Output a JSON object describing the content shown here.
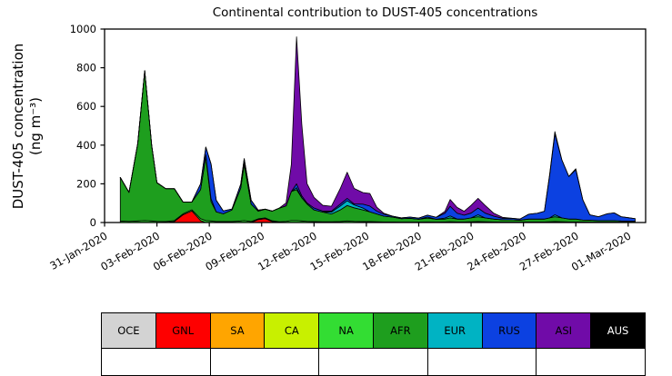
{
  "chart_data": {
    "type": "area",
    "stacked": true,
    "title": "Continental contribution to DUST-405 concentrations",
    "ylabel_line1": "DUST-405 concentration",
    "ylabel_line2": "(ng m⁻³)",
    "ylim": [
      0,
      1000
    ],
    "yticks": [
      0,
      200,
      400,
      600,
      800,
      1000
    ],
    "xlim_days": [
      0,
      31
    ],
    "xticks_days": [
      0,
      3,
      6,
      9,
      12,
      15,
      18,
      21,
      24,
      27,
      30
    ],
    "xtick_labels": [
      "31-Jan-2020",
      "03-Feb-2020",
      "06-Feb-2020",
      "09-Feb-2020",
      "12-Feb-2020",
      "15-Feb-2020",
      "18-Feb-2020",
      "21-Feb-2020",
      "24-Feb-2020",
      "27-Feb-2020",
      "01-Mar-2020"
    ],
    "grid": false,
    "legend_position": "bottom",
    "x_days": [
      0.9,
      1.4,
      1.9,
      2.3,
      2.7,
      3.0,
      3.5,
      4.0,
      4.5,
      5.0,
      5.5,
      5.8,
      6.1,
      6.4,
      6.8,
      7.3,
      7.8,
      8.0,
      8.4,
      8.8,
      9.2,
      9.6,
      10.0,
      10.4,
      10.7,
      11.0,
      11.3,
      11.6,
      12.0,
      12.5,
      13.0,
      13.5,
      13.9,
      14.3,
      14.8,
      15.2,
      15.6,
      16.0,
      16.5,
      17.0,
      17.5,
      18.0,
      18.5,
      19.0,
      19.5,
      19.8,
      20.2,
      20.6,
      21.0,
      21.4,
      21.8,
      22.3,
      22.8,
      23.3,
      23.8,
      24.3,
      24.8,
      25.2,
      25.5,
      25.8,
      26.2,
      26.6,
      27.0,
      27.4,
      27.8,
      28.3,
      28.8,
      29.2,
      29.6,
      30.0,
      30.4
    ],
    "series": [
      {
        "name": "OCE",
        "color": "#d3d3d3",
        "values": []
      },
      {
        "name": "GNL",
        "color": "#fe0000",
        "values": [
          0,
          0,
          0,
          0,
          0,
          0,
          0,
          5,
          40,
          60,
          10,
          0,
          0,
          0,
          0,
          0,
          0,
          0,
          0,
          15,
          20,
          5,
          0,
          0,
          0,
          0,
          0,
          0,
          0,
          0,
          0,
          0,
          0,
          0,
          0,
          0,
          0,
          0,
          0,
          0,
          0,
          0,
          0,
          0,
          0,
          0,
          0,
          0,
          0,
          0,
          0,
          0,
          0,
          0,
          0,
          0,
          0,
          0,
          0,
          0,
          0,
          0,
          0,
          0,
          0,
          0,
          0,
          0,
          0,
          0,
          0
        ]
      },
      {
        "name": "SA",
        "color": "#ffa500",
        "values": []
      },
      {
        "name": "CA",
        "color": "#c8f000",
        "values": []
      },
      {
        "name": "NA",
        "color": "#33dd33",
        "values": [
          8,
          6,
          8,
          10,
          8,
          6,
          5,
          5,
          5,
          6,
          10,
          10,
          8,
          5,
          5,
          5,
          8,
          10,
          5,
          4,
          4,
          4,
          4,
          6,
          10,
          10,
          8,
          6,
          5,
          4,
          4,
          5,
          8,
          6,
          5,
          5,
          4,
          3,
          3,
          2,
          2,
          2,
          3,
          2,
          3,
          4,
          3,
          3,
          4,
          5,
          4,
          3,
          2,
          2,
          2,
          3,
          3,
          3,
          4,
          5,
          4,
          3,
          3,
          3,
          2,
          2,
          2,
          2,
          2,
          2,
          2
        ]
      },
      {
        "name": "AFR",
        "color": "#1e9e1e",
        "values": [
          225,
          150,
          400,
          775,
          390,
          200,
          170,
          165,
          60,
          40,
          150,
          330,
          100,
          50,
          40,
          60,
          170,
          290,
          90,
          40,
          45,
          50,
          70,
          80,
          150,
          160,
          120,
          90,
          60,
          50,
          40,
          60,
          80,
          70,
          60,
          50,
          40,
          30,
          25,
          18,
          20,
          15,
          20,
          15,
          15,
          20,
          15,
          15,
          20,
          25,
          20,
          15,
          12,
          12,
          10,
          15,
          15,
          15,
          20,
          25,
          20,
          15,
          15,
          10,
          10,
          8,
          8,
          8,
          6,
          5,
          5
        ]
      },
      {
        "name": "EUR",
        "color": "#00b3c3",
        "values": [
          0,
          0,
          0,
          0,
          0,
          0,
          0,
          0,
          0,
          0,
          0,
          10,
          15,
          0,
          0,
          0,
          0,
          10,
          0,
          0,
          0,
          0,
          0,
          0,
          0,
          10,
          0,
          0,
          0,
          0,
          10,
          20,
          25,
          15,
          10,
          0,
          0,
          0,
          0,
          0,
          0,
          0,
          5,
          0,
          5,
          10,
          0,
          0,
          0,
          10,
          0,
          0,
          0,
          0,
          0,
          0,
          0,
          0,
          0,
          10,
          0,
          0,
          0,
          0,
          0,
          0,
          0,
          0,
          0,
          0,
          0
        ]
      },
      {
        "name": "RUS",
        "color": "#0c41e1",
        "values": [
          0,
          0,
          0,
          0,
          0,
          0,
          0,
          0,
          0,
          0,
          30,
          40,
          180,
          60,
          15,
          5,
          20,
          20,
          20,
          5,
          0,
          0,
          0,
          0,
          0,
          20,
          10,
          5,
          10,
          5,
          5,
          10,
          12,
          5,
          20,
          30,
          15,
          10,
          5,
          4,
          6,
          6,
          10,
          10,
          25,
          50,
          30,
          20,
          25,
          35,
          25,
          15,
          8,
          8,
          6,
          25,
          30,
          40,
          220,
          420,
          300,
          220,
          255,
          105,
          28,
          20,
          35,
          40,
          22,
          18,
          13
        ]
      },
      {
        "name": "ASI",
        "color": "#700ba8",
        "values": [
          0,
          0,
          0,
          0,
          0,
          0,
          0,
          0,
          0,
          0,
          0,
          0,
          0,
          0,
          0,
          0,
          0,
          0,
          0,
          0,
          0,
          0,
          0,
          15,
          140,
          760,
          370,
          100,
          55,
          30,
          25,
          80,
          135,
          80,
          60,
          65,
          20,
          5,
          0,
          0,
          0,
          0,
          0,
          0,
          10,
          35,
          30,
          20,
          40,
          50,
          40,
          15,
          5,
          0,
          0,
          0,
          0,
          0,
          5,
          10,
          0,
          0,
          5,
          0,
          0,
          0,
          0,
          0,
          0,
          0,
          0
        ]
      },
      {
        "name": "AUS",
        "color": "#000000",
        "values": []
      }
    ]
  }
}
